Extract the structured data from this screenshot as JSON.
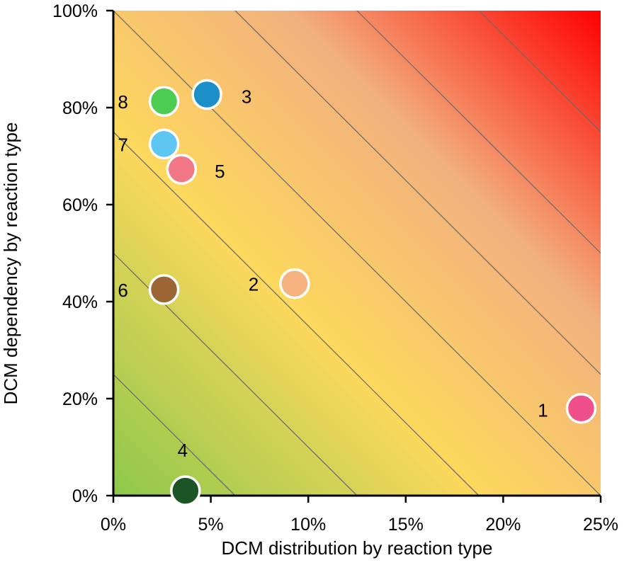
{
  "chart_data": {
    "type": "scatter",
    "xlabel": "DCM distribution by reaction type",
    "ylabel": "DCM dependency by reaction type",
    "xlim": [
      0,
      25
    ],
    "ylim": [
      0,
      100
    ],
    "x_ticks": [
      {
        "value": 0,
        "label": "0%"
      },
      {
        "value": 5,
        "label": "5%"
      },
      {
        "value": 10,
        "label": "10%"
      },
      {
        "value": 15,
        "label": "15%"
      },
      {
        "value": 20,
        "label": "20%"
      },
      {
        "value": 25,
        "label": "25%"
      }
    ],
    "y_ticks": [
      {
        "value": 0,
        "label": "0%"
      },
      {
        "value": 20,
        "label": "20%"
      },
      {
        "value": 40,
        "label": "40%"
      },
      {
        "value": 60,
        "label": "60%"
      },
      {
        "value": 80,
        "label": "80%"
      },
      {
        "value": 100,
        "label": "100%"
      }
    ],
    "background_gradient": [
      "#8cc84b",
      "#fdd85d",
      "#f2b07e",
      "#ff0000"
    ],
    "contour_color": "#6d6d6d",
    "points": [
      {
        "label": "1",
        "x": 24.0,
        "y": 18.0,
        "color": "#f0508a"
      },
      {
        "label": "2",
        "x": 9.3,
        "y": 43.7,
        "color": "#f6b27f"
      },
      {
        "label": "3",
        "x": 4.8,
        "y": 82.7,
        "color": "#1a8fc8"
      },
      {
        "label": "4",
        "x": 3.7,
        "y": 1.0,
        "color": "#1b5425"
      },
      {
        "label": "5",
        "x": 3.5,
        "y": 67.3,
        "color": "#f17786"
      },
      {
        "label": "6",
        "x": 2.6,
        "y": 42.5,
        "color": "#9c6634"
      },
      {
        "label": "7",
        "x": 2.6,
        "y": 72.5,
        "color": "#5dc6f2"
      },
      {
        "label": "8",
        "x": 2.6,
        "y": 81.3,
        "color": "#4ccd52"
      }
    ]
  }
}
